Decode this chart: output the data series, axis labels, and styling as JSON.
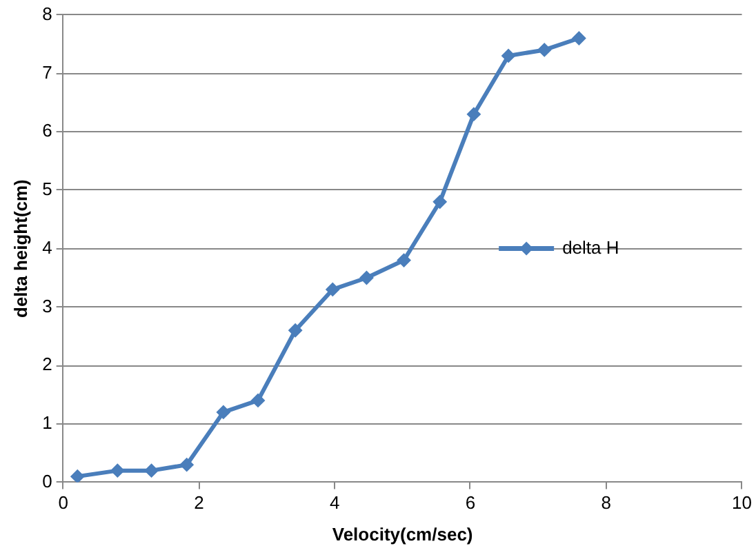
{
  "chart_data": {
    "type": "line",
    "xlabel": "Velocity(cm/sec)",
    "ylabel": "delta height(cm)",
    "xlim": [
      0,
      10
    ],
    "xticks": [
      0,
      2,
      4,
      6,
      8,
      10
    ],
    "ylim": [
      0,
      8
    ],
    "yticks": [
      0,
      1,
      2,
      3,
      4,
      5,
      6,
      7,
      8
    ],
    "grid": "y",
    "legend": "right",
    "marker": "diamond",
    "line_style": "solid",
    "series": [
      {
        "name": "delta H",
        "color": "#4a7ebb",
        "x": [
          0.21,
          0.8,
          1.3,
          1.82,
          2.36,
          2.87,
          3.42,
          3.97,
          4.47,
          5.02,
          5.55,
          6.05,
          6.56,
          7.09,
          7.6
        ],
        "values": [
          0.1,
          0.2,
          0.2,
          0.3,
          1.2,
          1.4,
          2.6,
          3.3,
          3.5,
          3.8,
          4.8,
          6.3,
          7.3,
          7.4,
          7.6
        ]
      }
    ]
  }
}
